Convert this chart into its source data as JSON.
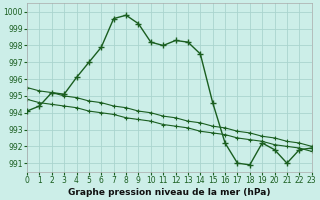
{
  "title": "Graphe pression niveau de la mer (hPa)",
  "bg_color": "#cceee8",
  "grid_color": "#aad4ce",
  "line_color": "#1a5e20",
  "xlim": [
    0,
    23
  ],
  "ylim": [
    990.5,
    1000.5
  ],
  "yticks": [
    991,
    992,
    993,
    994,
    995,
    996,
    997,
    998,
    999,
    1000
  ],
  "xticks": [
    0,
    1,
    2,
    3,
    4,
    5,
    6,
    7,
    8,
    9,
    10,
    11,
    12,
    13,
    14,
    15,
    16,
    17,
    18,
    19,
    20,
    21,
    22,
    23
  ],
  "main_x": [
    0,
    1,
    2,
    3,
    4,
    5,
    6,
    7,
    8,
    9,
    10,
    11,
    12,
    13,
    14,
    15,
    16,
    17,
    18,
    19,
    20,
    21,
    22,
    23
  ],
  "main_y": [
    994.1,
    994.4,
    995.2,
    995.1,
    996.1,
    997.0,
    997.9,
    999.6,
    999.8,
    999.3,
    998.2,
    998.0,
    998.3,
    998.2,
    997.5,
    994.6,
    992.2,
    991.0,
    990.9,
    992.2,
    991.8,
    991.0,
    991.8,
    991.9
  ],
  "trend1_x": [
    0,
    1,
    2,
    3,
    4,
    5,
    6,
    7,
    8,
    9,
    10,
    11,
    12,
    13,
    14,
    15,
    16,
    17,
    18,
    19,
    20,
    21,
    22,
    23
  ],
  "trend1_y": [
    994.8,
    994.6,
    994.5,
    994.4,
    994.3,
    994.1,
    994.0,
    993.9,
    993.7,
    993.6,
    993.5,
    993.3,
    993.2,
    993.1,
    992.9,
    992.8,
    992.7,
    992.5,
    992.4,
    992.3,
    992.1,
    992.0,
    991.9,
    991.7
  ],
  "trend2_x": [
    0,
    1,
    2,
    3,
    4,
    5,
    6,
    7,
    8,
    9,
    10,
    11,
    12,
    13,
    14,
    15,
    16,
    17,
    18,
    19,
    20,
    21,
    22,
    23
  ],
  "trend2_y": [
    995.5,
    995.3,
    995.2,
    995.0,
    994.9,
    994.7,
    994.6,
    994.4,
    994.3,
    994.1,
    994.0,
    993.8,
    993.7,
    993.5,
    993.4,
    993.2,
    993.1,
    992.9,
    992.8,
    992.6,
    992.5,
    992.3,
    992.2,
    992.0
  ],
  "tick_fontsize": 5.5,
  "label_fontsize": 6.5
}
